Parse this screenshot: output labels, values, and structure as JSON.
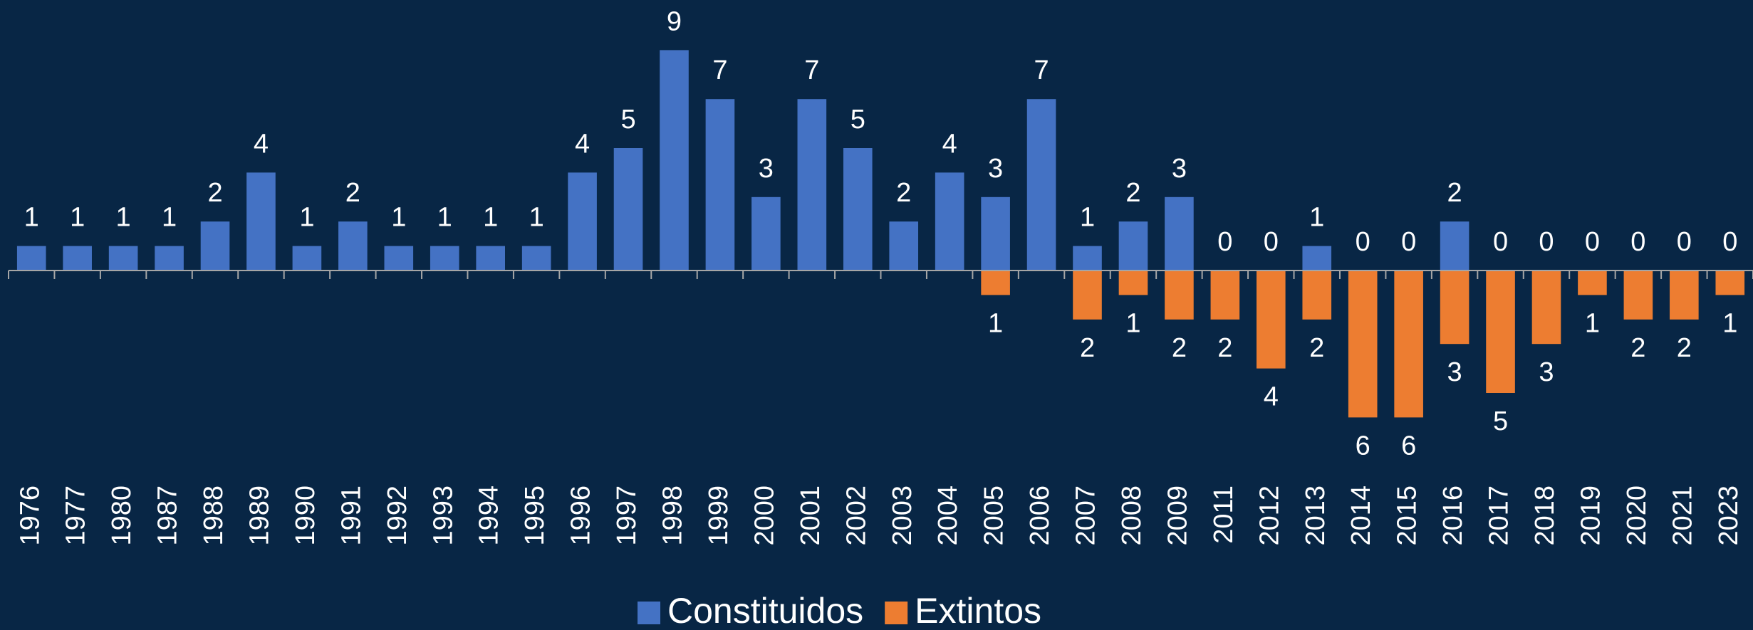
{
  "chart_data": {
    "type": "bar",
    "categories": [
      "1976",
      "1977",
      "1980",
      "1987",
      "1988",
      "1989",
      "1990",
      "1991",
      "1992",
      "1993",
      "1994",
      "1995",
      "1996",
      "1997",
      "1998",
      "1999",
      "2000",
      "2001",
      "2002",
      "2003",
      "2004",
      "2005",
      "2006",
      "2007",
      "2008",
      "2009",
      "2011",
      "2012",
      "2013",
      "2014",
      "2015",
      "2016",
      "2017",
      "2018",
      "2019",
      "2020",
      "2021",
      "2023"
    ],
    "series": [
      {
        "name": "Constituidos",
        "color": "#4472c4",
        "values": [
          1,
          1,
          1,
          1,
          2,
          4,
          1,
          2,
          1,
          1,
          1,
          1,
          4,
          5,
          9,
          7,
          3,
          7,
          5,
          2,
          4,
          3,
          7,
          1,
          2,
          3,
          0,
          0,
          1,
          0,
          0,
          2,
          0,
          0,
          0,
          0,
          0,
          0
        ]
      },
      {
        "name": "Extintos",
        "color": "#ed7d31",
        "values": [
          null,
          null,
          null,
          null,
          null,
          null,
          null,
          null,
          null,
          null,
          null,
          null,
          null,
          null,
          null,
          null,
          null,
          null,
          null,
          null,
          null,
          -1,
          null,
          -2,
          -1,
          -2,
          -2,
          -4,
          -2,
          -6,
          -6,
          -3,
          -5,
          -3,
          -1,
          -2,
          -2,
          -1
        ],
        "value_labels": [
          null,
          null,
          null,
          null,
          null,
          null,
          null,
          null,
          null,
          null,
          null,
          null,
          null,
          null,
          null,
          null,
          null,
          null,
          null,
          null,
          null,
          "1",
          null,
          "2",
          "1",
          "2",
          "2",
          "4",
          "2",
          "6",
          "6",
          "3",
          "5",
          "3",
          "1",
          "2",
          "2",
          "1"
        ]
      }
    ],
    "legend": "bottom"
  }
}
